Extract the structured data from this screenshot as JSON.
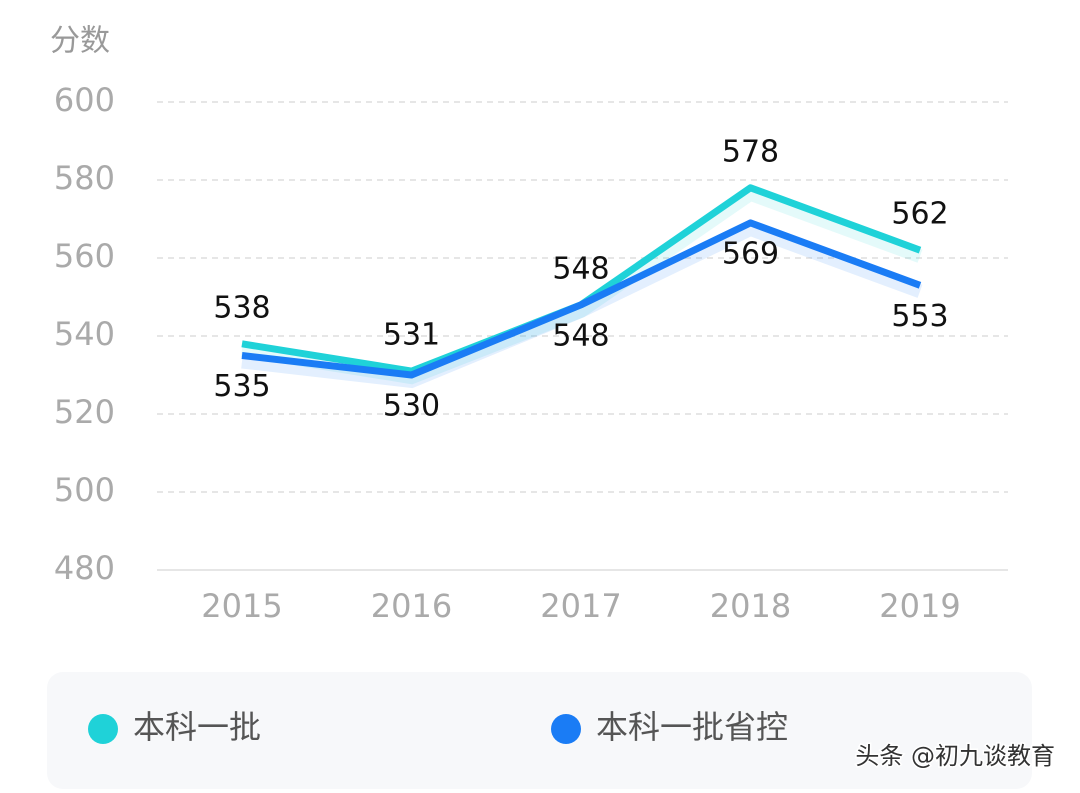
{
  "chart_data": {
    "type": "line",
    "y_label": "分数",
    "categories": [
      "2015",
      "2016",
      "2017",
      "2018",
      "2019"
    ],
    "series": [
      {
        "name": "本科一批",
        "color": "#1fd2d8",
        "values": [
          538,
          531,
          548,
          578,
          562
        ]
      },
      {
        "name": "本科一批省控",
        "color": "#1a7cf5",
        "values": [
          535,
          530,
          548,
          569,
          553
        ]
      }
    ],
    "ylim": [
      480,
      600
    ],
    "yticks": [
      480,
      500,
      520,
      540,
      560,
      580,
      600
    ],
    "grid": true
  },
  "watermark": "头条 @初九谈教育"
}
